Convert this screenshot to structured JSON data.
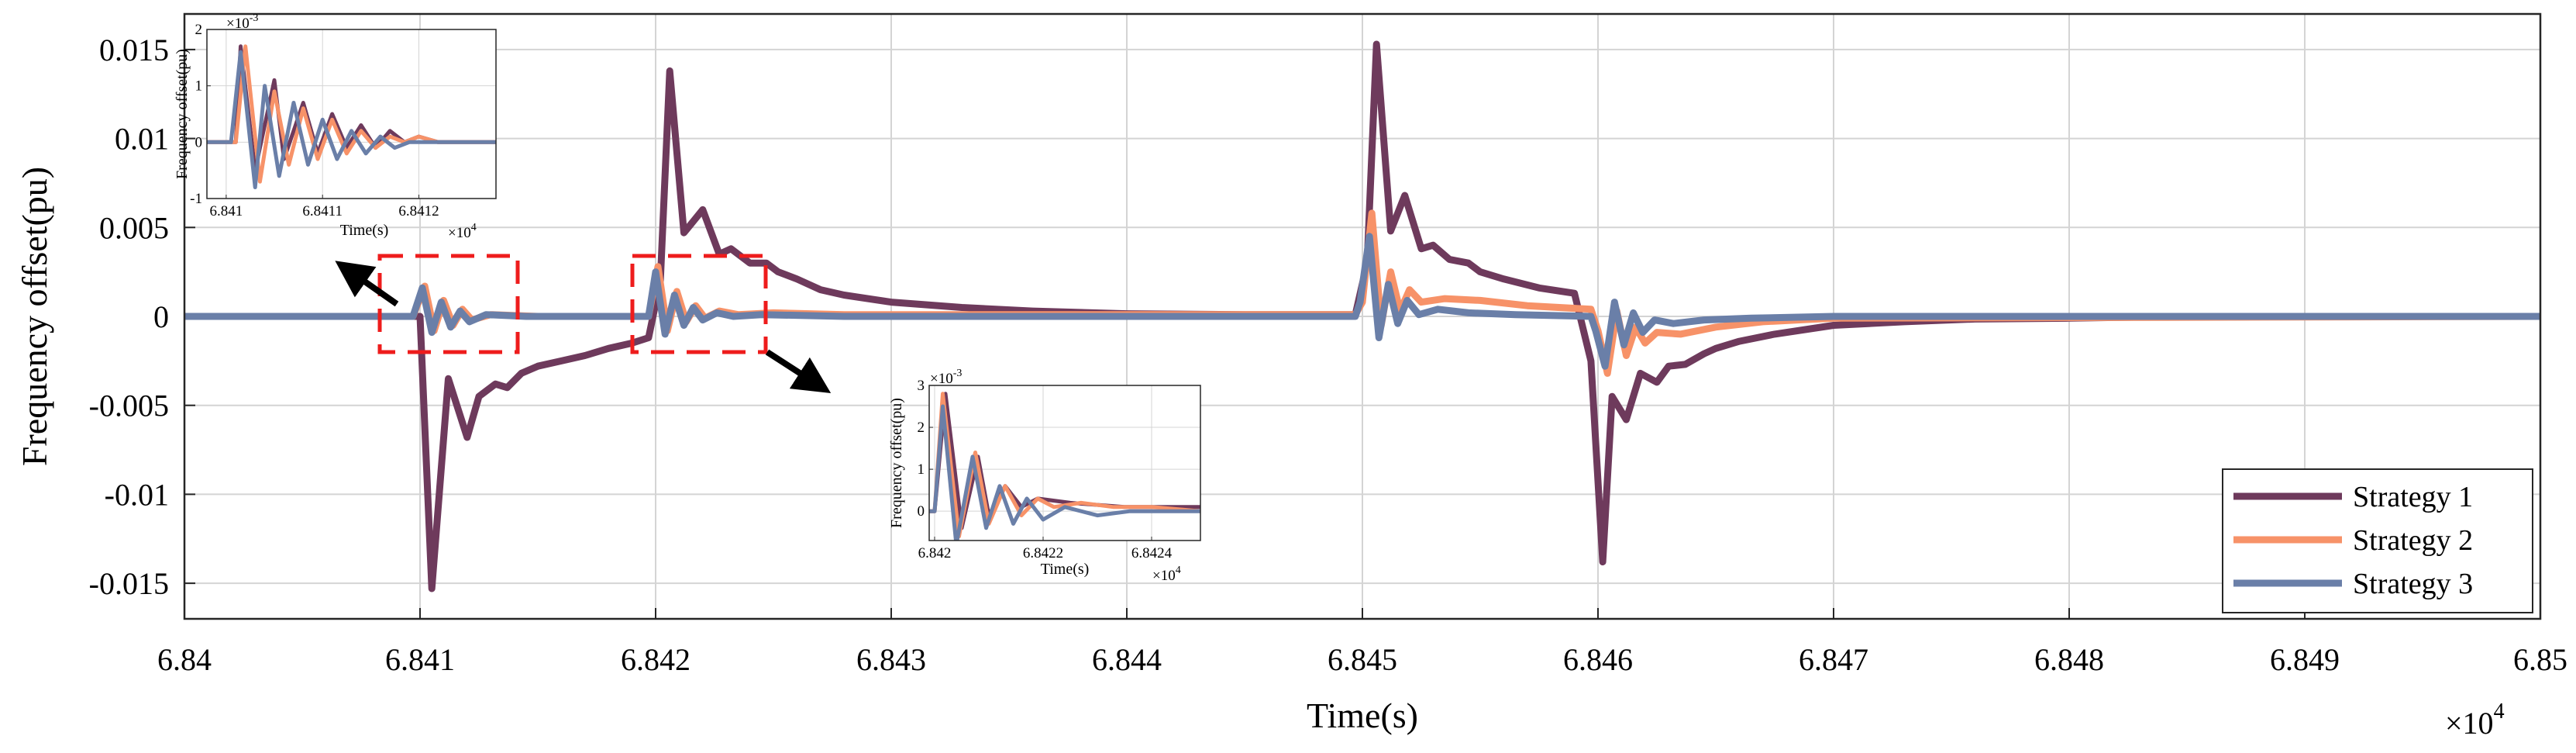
{
  "chart_data": {
    "type": "line",
    "title": "",
    "xlabel": "Time(s)",
    "ylabel": "Frequency offset(pu)",
    "x_multiplier": "×10",
    "x_exponent": "4",
    "xlim": [
      6.84,
      6.85
    ],
    "ylim": [
      -0.017,
      0.017
    ],
    "xticks": [
      6.84,
      6.841,
      6.842,
      6.843,
      6.844,
      6.845,
      6.846,
      6.847,
      6.848,
      6.849,
      6.85
    ],
    "xtick_labels": [
      "6.84",
      "6.841",
      "6.842",
      "6.843",
      "6.844",
      "6.845",
      "6.846",
      "6.847",
      "6.848",
      "6.849",
      "6.85"
    ],
    "yticks": [
      -0.015,
      -0.01,
      -0.005,
      0,
      0.005,
      0.01,
      0.015
    ],
    "ytick_labels": [
      "-0.015",
      "-0.01",
      "-0.005",
      "0",
      "0.005",
      "0.01",
      "0.015"
    ],
    "grid": true,
    "legend_position": "bottom-right",
    "series": [
      {
        "name": "Strategy 1",
        "color": "#6e3a5c",
        "x": [
          6.84,
          6.8409,
          6.84098,
          6.841,
          6.84105,
          6.84112,
          6.8412,
          6.84125,
          6.84132,
          6.84137,
          6.84143,
          6.8415,
          6.8416,
          6.8417,
          6.8418,
          6.8419,
          6.84197,
          6.84202,
          6.84206,
          6.84212,
          6.8422,
          6.84227,
          6.84232,
          6.8424,
          6.84247,
          6.84252,
          6.8426,
          6.8427,
          6.8428,
          6.843,
          6.8433,
          6.8436,
          6.844,
          6.8445,
          6.84497,
          6.84502,
          6.84506,
          6.84512,
          6.84518,
          6.84525,
          6.8453,
          6.84537,
          6.84545,
          6.8455,
          6.8456,
          6.84575,
          6.8459,
          6.84597,
          6.84602,
          6.84606,
          6.84612,
          6.84618,
          6.84625,
          6.8463,
          6.84637,
          6.84645,
          6.8465,
          6.8466,
          6.84675,
          6.847,
          6.8473,
          6.8476,
          6.848,
          6.8485,
          6.85
        ],
        "y": [
          0,
          0,
          0,
          0,
          -0.0153,
          -0.0035,
          -0.0068,
          -0.0045,
          -0.0038,
          -0.004,
          -0.0032,
          -0.0028,
          -0.0025,
          -0.0022,
          -0.0018,
          -0.0015,
          -0.0012,
          0.002,
          0.0138,
          0.0047,
          0.006,
          0.0035,
          0.0038,
          0.003,
          0.003,
          0.0025,
          0.0021,
          0.0015,
          0.0012,
          0.0008,
          0.0005,
          0.0003,
          0.00015,
          0.0001,
          0.0001,
          0.003,
          0.0153,
          0.0048,
          0.0068,
          0.0038,
          0.004,
          0.0032,
          0.003,
          0.0025,
          0.0021,
          0.0016,
          0.0013,
          -0.0025,
          -0.0138,
          -0.0045,
          -0.0058,
          -0.0032,
          -0.0037,
          -0.0028,
          -0.0027,
          -0.0021,
          -0.0018,
          -0.0014,
          -0.001,
          -0.0005,
          -0.0003,
          -0.00015,
          -0.0001,
          0,
          0
        ]
      },
      {
        "name": "Strategy 2",
        "color": "#f79268",
        "x": [
          6.84,
          6.8409,
          6.84097,
          6.84102,
          6.84106,
          6.8411,
          6.84114,
          6.84118,
          6.84122,
          6.8413,
          6.8415,
          6.8419,
          6.84197,
          6.84201,
          6.84205,
          6.84209,
          6.84213,
          6.84217,
          6.84221,
          6.84227,
          6.84235,
          6.8425,
          6.8428,
          6.84497,
          6.845,
          6.84504,
          6.84508,
          6.84512,
          6.84516,
          6.8452,
          6.84525,
          6.84535,
          6.8455,
          6.8457,
          6.84597,
          6.846,
          6.84604,
          6.84608,
          6.84612,
          6.84616,
          6.8462,
          6.84625,
          6.84635,
          6.8465,
          6.8467,
          6.847,
          6.85
        ],
        "y": [
          0,
          0,
          0,
          0.0017,
          -0.0008,
          0.0009,
          -0.0005,
          0.0004,
          -0.0002,
          0.0001,
          0,
          0,
          0,
          0.0028,
          -0.0008,
          0.0014,
          -0.0003,
          0.0006,
          -0.0001,
          0.0003,
          0.0001,
          0.0002,
          0.0001,
          0.0001,
          0.0008,
          0.0058,
          -0.0005,
          0.0025,
          0.0003,
          0.0015,
          0.0008,
          0.001,
          0.0009,
          0.0006,
          0.0004,
          -0.0008,
          -0.0032,
          0.0003,
          -0.0022,
          -0.0006,
          -0.0015,
          -0.0009,
          -0.001,
          -0.0006,
          -0.0003,
          -0.0001,
          0
        ]
      },
      {
        "name": "Strategy 3",
        "color": "#6a7fa8",
        "x": [
          6.84,
          6.8409,
          6.84097,
          6.84101,
          6.84105,
          6.84109,
          6.84113,
          6.84117,
          6.84121,
          6.84128,
          6.84145,
          6.8419,
          6.84197,
          6.842,
          6.84204,
          6.84208,
          6.84212,
          6.84216,
          6.8422,
          6.84226,
          6.84233,
          6.84245,
          6.8428,
          6.84497,
          6.84499,
          6.84503,
          6.84507,
          6.84511,
          6.84515,
          6.84519,
          6.84524,
          6.84532,
          6.84545,
          6.84565,
          6.84597,
          6.84599,
          6.84603,
          6.84607,
          6.84611,
          6.84615,
          6.84619,
          6.84624,
          6.84632,
          6.84645,
          6.84665,
          6.847,
          6.85
        ],
        "y": [
          0,
          0,
          0,
          0.0016,
          -0.0009,
          0.0008,
          -0.0006,
          0.0003,
          -0.0003,
          0.0001,
          0,
          0,
          0,
          0.0025,
          -0.001,
          0.0012,
          -0.0005,
          0.0005,
          -0.0002,
          0.0002,
          0,
          0.0001,
          0,
          0,
          0.0008,
          0.0045,
          -0.0012,
          0.0018,
          -0.0004,
          0.0009,
          0.0001,
          0.0004,
          0.0002,
          0.0001,
          0,
          -0.0008,
          -0.0028,
          0.0008,
          -0.0016,
          0.0002,
          -0.0009,
          -0.0002,
          -0.0004,
          -0.0002,
          -0.0001,
          0,
          0
        ]
      }
    ],
    "insets": [
      {
        "position": "top-left",
        "xlabel": "Time(s)",
        "ylabel": "Frequency offset(pu)",
        "y_multiplier": "×10",
        "y_exponent": "-3",
        "x_multiplier": "×10",
        "x_exponent": "4",
        "xlim": [
          6.84098,
          6.84128
        ],
        "ylim": [
          -0.001,
          0.002
        ],
        "xticks": [
          6.841,
          6.8411,
          6.8412
        ],
        "xtick_labels": [
          "6.841",
          "6.8411",
          "6.8412"
        ],
        "yticks": [
          -0.001,
          0,
          0.001,
          0.002
        ],
        "ytick_labels": [
          "-1",
          "0",
          "1",
          "2"
        ],
        "series": [
          {
            "name": "Strategy 1",
            "color": "#6e3a5c",
            "x": [
              6.84098,
              6.84101,
              6.841015,
              6.84103,
              6.84105,
              6.84106,
              6.84108,
              6.841095,
              6.84111,
              6.841125,
              6.84114,
              6.841155,
              6.84117,
              6.841185,
              6.8412,
              6.84122,
              6.84125,
              6.84128
            ],
            "y": [
              0,
              0,
              0.0017,
              -0.0005,
              0.0011,
              -0.0003,
              0.0007,
              -0.0002,
              0.0005,
              -0.0001,
              0.0003,
              -0.0001,
              0.0002,
              0,
              0.0001,
              0,
              0,
              0
            ]
          },
          {
            "name": "Strategy 2",
            "color": "#f79268",
            "x": [
              6.84098,
              6.84101,
              6.84102,
              6.841035,
              6.84105,
              6.841065,
              6.84108,
              6.841095,
              6.84111,
              6.841125,
              6.84114,
              6.841155,
              6.84117,
              6.841185,
              6.8412,
              6.84122,
              6.84125,
              6.84128
            ],
            "y": [
              0,
              0,
              0.0017,
              -0.0007,
              0.0009,
              -0.0004,
              0.0006,
              -0.0003,
              0.0004,
              -0.0002,
              0.0002,
              -0.0001,
              0.0001,
              0,
              0.0001,
              0,
              0,
              0
            ]
          },
          {
            "name": "Strategy 3",
            "color": "#6a7fa8",
            "x": [
              6.84098,
              6.841005,
              6.841015,
              6.84103,
              6.84104,
              6.841055,
              6.84107,
              6.841085,
              6.8411,
              6.841115,
              6.84113,
              6.841145,
              6.84116,
              6.841175,
              6.84119,
              6.84121,
              6.84124,
              6.84128
            ],
            "y": [
              0,
              0,
              0.0016,
              -0.0008,
              0.001,
              -0.0006,
              0.0007,
              -0.0004,
              0.0004,
              -0.0003,
              0.0002,
              -0.0002,
              0.0001,
              -0.0001,
              0,
              0,
              0,
              0
            ]
          }
        ]
      },
      {
        "position": "bottom-center",
        "xlabel": "Time(s)",
        "ylabel": "Frequency offset(pu)",
        "y_multiplier": "×10",
        "y_exponent": "-3",
        "x_multiplier": "×10",
        "x_exponent": "4",
        "xlim": [
          6.84199,
          6.84249
        ],
        "ylim": [
          -0.0007,
          0.003
        ],
        "xticks": [
          6.842,
          6.8422,
          6.8424
        ],
        "xtick_labels": [
          "6.842",
          "6.8422",
          "6.8424"
        ],
        "yticks": [
          0,
          0.001,
          0.002,
          0.003
        ],
        "ytick_labels": [
          "0",
          "1",
          "2",
          "3"
        ],
        "series": [
          {
            "name": "Strategy 1",
            "color": "#6e3a5c",
            "x": [
              6.84199,
              6.842,
              6.84202,
              6.84205,
              6.84208,
              6.8421,
              6.84213,
              6.84216,
              6.84219,
              6.84225,
              6.84235,
              6.84249
            ],
            "y": [
              0,
              0,
              0.0028,
              -0.0004,
              0.0013,
              -0.0001,
              0.0006,
              0.0001,
              0.0003,
              0.0002,
              0.0001,
              0.0001
            ]
          },
          {
            "name": "Strategy 2",
            "color": "#f79268",
            "x": [
              6.84199,
              6.842,
              6.842015,
              6.842045,
              6.842075,
              6.8421,
              6.84213,
              6.84216,
              6.84219,
              6.84222,
              6.84227,
              6.84233,
              6.8424,
              6.84249
            ],
            "y": [
              0,
              0,
              0.0028,
              -0.0006,
              0.0014,
              -0.0003,
              0.0006,
              -0.0001,
              0.0003,
              0.0001,
              0.0002,
              0.0001,
              0.0001,
              0
            ]
          },
          {
            "name": "Strategy 3",
            "color": "#6a7fa8",
            "x": [
              6.84199,
              6.842,
              6.842015,
              6.84204,
              6.84207,
              6.842095,
              6.84212,
              6.842145,
              6.84217,
              6.8422,
              6.84224,
              6.8423,
              6.84236,
              6.84242,
              6.84249
            ],
            "y": [
              0,
              0,
              0.0025,
              -0.0008,
              0.0013,
              -0.0004,
              0.0006,
              -0.0003,
              0.0003,
              -0.0002,
              0.0001,
              -0.0001,
              0,
              0,
              0
            ]
          }
        ]
      }
    ]
  }
}
